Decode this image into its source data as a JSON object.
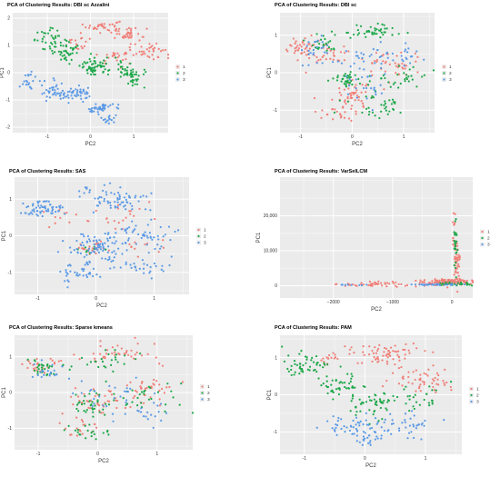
{
  "figure": {
    "series_colors": {
      "1": "#f07f78",
      "2": "#1ea84a",
      "3": "#5b9ae6"
    },
    "panel_bg": "#ebebeb",
    "grid_color": "#ffffff"
  },
  "chart_data": [
    {
      "type": "scatter",
      "title": "PCA of Clustering Results: DBI sc Azzalini",
      "xlabel": "PC2",
      "ylabel": "PC1",
      "xlim": [
        -1.8,
        1.8
      ],
      "ylim": [
        -2.2,
        2.2
      ],
      "xticks": [
        -1,
        0,
        1
      ],
      "yticks": [
        -2,
        -1,
        0,
        1,
        2
      ],
      "grid": true,
      "legend": "right",
      "legend_labels": [
        "1",
        "2",
        "3"
      ],
      "series": [
        {
          "name": "1",
          "clusters": [
            [
              0.3,
              1.7,
              0.35,
              0.2,
              35
            ],
            [
              0.9,
              1.4,
              0.35,
              0.3,
              40
            ],
            [
              1.4,
              0.8,
              0.3,
              0.3,
              30
            ],
            [
              -0.3,
              1.1,
              0.3,
              0.3,
              18
            ],
            [
              0.6,
              0.6,
              0.4,
              0.25,
              25
            ]
          ]
        },
        {
          "name": "2",
          "clusters": [
            [
              -0.9,
              1.2,
              0.35,
              0.35,
              40
            ],
            [
              -0.5,
              0.7,
              0.3,
              0.3,
              35
            ],
            [
              0.1,
              0.2,
              0.3,
              0.3,
              60
            ],
            [
              0.9,
              0.1,
              0.3,
              0.3,
              40
            ],
            [
              1.0,
              -0.3,
              0.15,
              0.25,
              15
            ]
          ]
        },
        {
          "name": "3",
          "clusters": [
            [
              -1.4,
              -0.3,
              0.15,
              0.3,
              20
            ],
            [
              -0.9,
              -0.7,
              0.25,
              0.35,
              35
            ],
            [
              -0.3,
              -0.8,
              0.35,
              0.25,
              45
            ],
            [
              0.2,
              -1.3,
              0.3,
              0.2,
              40
            ],
            [
              0.45,
              -1.7,
              0.2,
              0.15,
              15
            ]
          ]
        }
      ]
    },
    {
      "type": "scatter",
      "title": "PCA of Clustering Results: DBI sc",
      "xlabel": "PC2",
      "ylabel": "PC1",
      "xlim": [
        -1.4,
        1.6
      ],
      "ylim": [
        -1.6,
        1.6
      ],
      "xticks": [
        -1,
        0,
        1
      ],
      "yticks": [
        -1,
        0,
        1
      ],
      "grid": true,
      "legend": "right",
      "legend_labels": [
        "1",
        "2",
        "3"
      ],
      "series": [
        {
          "name": "1",
          "clusters": [
            [
              -1.0,
              0.7,
              0.25,
              0.25,
              35
            ],
            [
              -0.5,
              0.5,
              0.4,
              0.3,
              35
            ],
            [
              0.0,
              -0.6,
              0.4,
              0.35,
              50
            ],
            [
              0.8,
              0.2,
              0.5,
              0.4,
              40
            ],
            [
              -0.3,
              -1.1,
              0.3,
              0.2,
              20
            ]
          ]
        },
        {
          "name": "2",
          "clusters": [
            [
              -0.6,
              0.8,
              0.3,
              0.2,
              25
            ],
            [
              0.4,
              1.1,
              0.6,
              0.2,
              45
            ],
            [
              -0.1,
              -0.2,
              0.3,
              0.2,
              35
            ],
            [
              0.9,
              -0.1,
              0.5,
              0.3,
              30
            ],
            [
              0.5,
              -0.9,
              0.5,
              0.3,
              35
            ]
          ]
        },
        {
          "name": "3",
          "clusters": [
            [
              0.3,
              0.4,
              0.5,
              0.3,
              25
            ],
            [
              -0.7,
              0.6,
              0.3,
              0.3,
              25
            ],
            [
              0.3,
              -0.3,
              0.4,
              0.4,
              25
            ],
            [
              1.0,
              0.5,
              0.3,
              0.3,
              20
            ]
          ]
        }
      ]
    },
    {
      "type": "scatter",
      "title": "PCA of Clustering Results: SAS",
      "xlabel": "PC2",
      "ylabel": "PC1",
      "xlim": [
        -1.4,
        1.6
      ],
      "ylim": [
        -1.6,
        1.6
      ],
      "xticks": [
        -1,
        0,
        1
      ],
      "yticks": [
        -1,
        0,
        1
      ],
      "grid": true,
      "legend": "right",
      "legend_labels": [
        "1",
        "2",
        "3"
      ],
      "series": [
        {
          "name": "1",
          "clusters": [
            [
              0.0,
              -0.3,
              0.35,
              0.2,
              30
            ],
            [
              0.4,
              0.5,
              0.5,
              0.3,
              20
            ],
            [
              -0.6,
              0.6,
              0.3,
              0.3,
              10
            ],
            [
              0.8,
              -0.2,
              0.5,
              0.4,
              12
            ]
          ]
        },
        {
          "name": "2",
          "clusters": [
            [
              -0.2,
              -0.4,
              0.3,
              0.2,
              8
            ]
          ]
        },
        {
          "name": "3",
          "clusters": [
            [
              -0.9,
              0.7,
              0.3,
              0.25,
              60
            ],
            [
              0.3,
              1.0,
              0.6,
              0.3,
              70
            ],
            [
              0.0,
              -0.3,
              0.45,
              0.35,
              70
            ],
            [
              0.8,
              0.0,
              0.5,
              0.4,
              55
            ],
            [
              -0.3,
              -1.0,
              0.4,
              0.3,
              40
            ],
            [
              0.7,
              -0.8,
              0.5,
              0.3,
              35
            ]
          ]
        }
      ]
    },
    {
      "type": "scatter",
      "title": "PCA of Clustering Results: VarSelLCM",
      "xlabel": "PC2",
      "ylabel": "PC1",
      "xlim": [
        -2900,
        350
      ],
      "ylim": [
        -3500,
        31000
      ],
      "xticks": [
        -2000,
        -1000,
        0
      ],
      "yticks": [
        0,
        10000,
        20000
      ],
      "xticklabels": [
        "−2000",
        "−1000",
        "0"
      ],
      "yticklabels": [
        "0",
        "10,000",
        "20,000"
      ],
      "grid": true,
      "legend": "right",
      "legend_labels": [
        "1",
        "2",
        "3"
      ],
      "series": [
        {
          "name": "1",
          "clusters": [
            [
              -100,
              1000,
              400,
              800,
              140
            ],
            [
              -1200,
              400,
              700,
              600,
              50
            ],
            [
              80,
              6000,
              40,
              6000,
              40
            ],
            [
              40,
              16000,
              40,
              8000,
              15
            ]
          ]
        },
        {
          "name": "2",
          "clusters": [
            [
              60,
              12000,
              30,
              8000,
              25
            ],
            [
              80,
              500,
              250,
              400,
              30
            ]
          ]
        },
        {
          "name": "3",
          "clusters": [
            [
              -300,
              300,
              400,
              250,
              35
            ],
            [
              -1700,
              200,
              300,
              200,
              8
            ]
          ]
        }
      ]
    },
    {
      "type": "scatter",
      "title": "PCA of Clustering Results: Sparse kmeans",
      "xlabel": "PC2",
      "ylabel": "PC1",
      "xlim": [
        -1.4,
        1.6
      ],
      "ylim": [
        -1.6,
        1.6
      ],
      "xticks": [
        -1,
        0,
        1
      ],
      "yticks": [
        -1,
        0,
        1
      ],
      "grid": true,
      "legend": "right",
      "legend_labels": [
        "1",
        "2",
        "3"
      ],
      "series": [
        {
          "name": "1",
          "clusters": [
            [
              -0.9,
              0.8,
              0.3,
              0.25,
              25
            ],
            [
              0.3,
              1.1,
              0.6,
              0.3,
              40
            ],
            [
              0.0,
              -0.2,
              0.45,
              0.35,
              40
            ],
            [
              0.9,
              0.1,
              0.5,
              0.4,
              35
            ],
            [
              -0.3,
              -1.0,
              0.4,
              0.3,
              20
            ]
          ]
        },
        {
          "name": "2",
          "clusters": [
            [
              -0.9,
              0.7,
              0.3,
              0.25,
              30
            ],
            [
              0.2,
              0.9,
              0.5,
              0.3,
              25
            ],
            [
              -0.1,
              -0.3,
              0.45,
              0.35,
              40
            ],
            [
              0.8,
              -0.1,
              0.5,
              0.4,
              25
            ],
            [
              -0.2,
              -1.1,
              0.4,
              0.25,
              20
            ]
          ]
        },
        {
          "name": "3",
          "clusters": [
            [
              -0.8,
              0.5,
              0.3,
              0.3,
              20
            ],
            [
              0.2,
              0.0,
              0.5,
              0.4,
              25
            ],
            [
              0.8,
              -0.6,
              0.5,
              0.3,
              20
            ]
          ]
        }
      ]
    },
    {
      "type": "scatter",
      "title": "PCA of Clustering Results: PAM",
      "xlabel": "PC2",
      "ylabel": "PC1",
      "xlim": [
        -1.4,
        1.6
      ],
      "ylim": [
        -1.6,
        1.6
      ],
      "xticks": [
        -1,
        0,
        1
      ],
      "yticks": [
        -1,
        0,
        1
      ],
      "grid": true,
      "legend": "right",
      "legend_labels": [
        "1",
        "2",
        "3"
      ],
      "series": [
        {
          "name": "1",
          "clusters": [
            [
              0.3,
              1.1,
              0.6,
              0.3,
              70
            ],
            [
              0.9,
              0.4,
              0.5,
              0.3,
              50
            ],
            [
              -0.6,
              0.9,
              0.2,
              0.2,
              15
            ]
          ]
        },
        {
          "name": "2",
          "clusters": [
            [
              -1.0,
              0.8,
              0.3,
              0.25,
              50
            ],
            [
              -0.4,
              0.3,
              0.35,
              0.3,
              45
            ],
            [
              0.1,
              -0.2,
              0.4,
              0.3,
              50
            ],
            [
              0.8,
              -0.1,
              0.4,
              0.3,
              30
            ]
          ]
        },
        {
          "name": "3",
          "clusters": [
            [
              -0.2,
              -0.8,
              0.4,
              0.3,
              45
            ],
            [
              0.6,
              -0.8,
              0.5,
              0.3,
              40
            ],
            [
              0.1,
              -1.2,
              0.3,
              0.2,
              20
            ]
          ]
        }
      ]
    }
  ]
}
